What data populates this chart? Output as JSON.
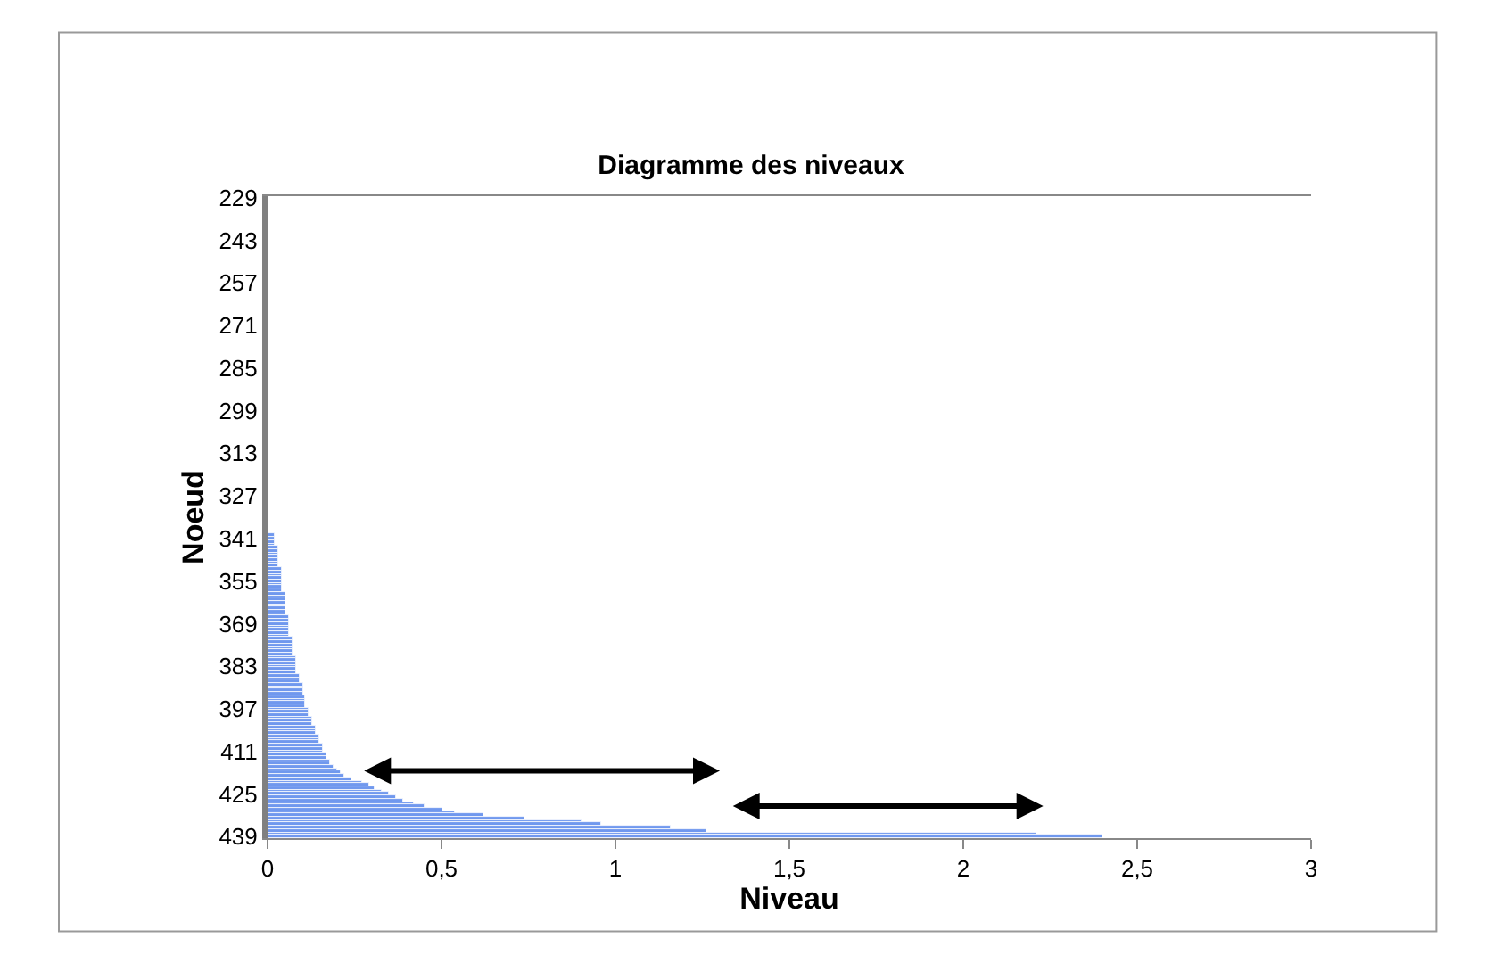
{
  "chart_data": {
    "type": "bar",
    "orientation": "horizontal",
    "title": "Diagramme des niveaux",
    "xlabel": "Niveau",
    "ylabel": "Noeud",
    "categories": [
      "229",
      null,
      null,
      null,
      null,
      null,
      null,
      null,
      null,
      null,
      null,
      null,
      null,
      null,
      "243",
      null,
      null,
      null,
      null,
      null,
      null,
      null,
      null,
      null,
      null,
      null,
      null,
      null,
      "257",
      null,
      null,
      null,
      null,
      null,
      null,
      null,
      null,
      null,
      null,
      null,
      null,
      null,
      "271",
      null,
      null,
      null,
      null,
      null,
      null,
      null,
      null,
      null,
      null,
      null,
      null,
      null,
      "285",
      null,
      null,
      null,
      null,
      null,
      null,
      null,
      null,
      null,
      null,
      null,
      null,
      null,
      "299",
      null,
      null,
      null,
      null,
      null,
      null,
      null,
      null,
      null,
      null,
      null,
      null,
      null,
      "313",
      null,
      null,
      null,
      null,
      null,
      null,
      null,
      null,
      null,
      null,
      null,
      null,
      null,
      "327",
      null,
      null,
      null,
      null,
      null,
      null,
      null,
      null,
      null,
      null,
      null,
      null,
      null,
      "341",
      null,
      null,
      null,
      null,
      null,
      null,
      null,
      null,
      null,
      null,
      null,
      null,
      null,
      "355",
      null,
      null,
      null,
      null,
      null,
      null,
      null,
      null,
      null,
      null,
      null,
      null,
      null,
      "369",
      null,
      null,
      null,
      null,
      null,
      null,
      null,
      null,
      null,
      null,
      null,
      null,
      null,
      "383",
      null,
      null,
      null,
      null,
      null,
      null,
      null,
      null,
      null,
      null,
      null,
      null,
      null,
      "397",
      null,
      null,
      null,
      null,
      null,
      null,
      null,
      null,
      null,
      null,
      null,
      null,
      null,
      "411",
      null,
      null,
      null,
      null,
      null,
      null,
      null,
      null,
      null,
      null,
      null,
      null,
      null,
      "425",
      null,
      null,
      null,
      null,
      null,
      null,
      null,
      null,
      null,
      null,
      null,
      null,
      null,
      "439"
    ],
    "values": [
      0,
      0,
      0,
      0,
      0,
      0,
      0,
      0,
      0,
      0,
      0,
      0,
      0,
      0,
      0,
      0,
      0,
      0,
      0,
      0,
      0,
      0,
      0,
      0,
      0,
      0,
      0,
      0,
      0,
      0,
      0,
      0,
      0,
      0,
      0,
      0,
      0,
      0,
      0,
      0,
      0,
      0,
      0,
      0,
      0,
      0,
      0,
      0,
      0,
      0,
      0,
      0,
      0,
      0,
      0,
      0,
      0,
      0,
      0,
      0,
      0,
      0,
      0,
      0,
      0,
      0,
      0,
      0,
      0,
      0,
      0,
      0,
      0,
      0,
      0,
      0,
      0,
      0,
      0,
      0,
      0,
      0,
      0,
      0,
      0,
      0,
      0,
      0,
      0,
      0,
      0,
      0,
      0,
      0,
      0,
      0,
      0,
      0,
      0,
      0,
      0,
      0,
      0,
      0,
      0,
      0,
      0,
      0,
      0,
      0,
      0,
      0.02,
      0.02,
      0.02,
      0.02,
      0.03,
      0.03,
      0.03,
      0.03,
      0.03,
      0.03,
      0.03,
      0.04,
      0.04,
      0.04,
      0.04,
      0.04,
      0.04,
      0.04,
      0.04,
      0.05,
      0.05,
      0.05,
      0.05,
      0.05,
      0.05,
      0.05,
      0.05,
      0.06,
      0.06,
      0.06,
      0.06,
      0.06,
      0.06,
      0.06,
      0.07,
      0.07,
      0.07,
      0.07,
      0.07,
      0.07,
      0.08,
      0.08,
      0.08,
      0.08,
      0.08,
      0.08,
      0.09,
      0.09,
      0.09,
      0.1,
      0.1,
      0.1,
      0.1,
      0.11,
      0.11,
      0.11,
      0.11,
      0.12,
      0.12,
      0.12,
      0.13,
      0.13,
      0.13,
      0.14,
      0.14,
      0.14,
      0.15,
      0.15,
      0.15,
      0.16,
      0.16,
      0.16,
      0.17,
      0.17,
      0.18,
      0.18,
      0.19,
      0.2,
      0.21,
      0.22,
      0.24,
      0.27,
      0.29,
      0.31,
      0.33,
      0.35,
      0.37,
      0.39,
      0.42,
      0.45,
      0.5,
      0.54,
      0.62,
      0.74,
      0.9,
      0.96,
      1.16,
      1.26,
      2.21,
      2.4
    ],
    "color": "#7098ee",
    "xlim": [
      0,
      3
    ],
    "xticks": [
      0,
      {
        "value": 0.5,
        "label": "0,5"
      },
      1,
      {
        "value": 1.5,
        "label": "1,5"
      },
      2,
      {
        "value": 2.5,
        "label": "2,5"
      },
      3
    ],
    "legend": false
  }
}
